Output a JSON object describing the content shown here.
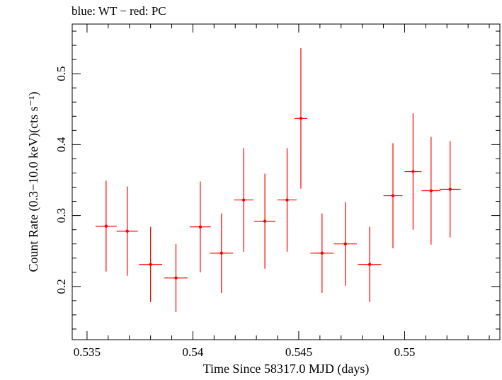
{
  "chart_data": {
    "type": "scatter",
    "title": "blue: WT − red: PC",
    "xlabel": "Time Since 58317.0 MJD (days)",
    "ylabel": "Count Rate (0.3−10.0 keV)(cts s⁻¹)",
    "xlim": [
      0.5343,
      0.5545
    ],
    "ylim": [
      0.125,
      0.57
    ],
    "xticks": [
      0.535,
      0.54,
      0.545,
      0.55
    ],
    "xtick_labels": [
      "0.535",
      "0.54",
      "0.545",
      "0.55"
    ],
    "yticks": [
      0.2,
      0.3,
      0.4,
      0.5
    ],
    "ytick_labels": [
      "0.2",
      "0.3",
      "0.4",
      "0.5"
    ],
    "grid": false,
    "series": [
      {
        "color": "#ff0000",
        "x": [
          0.5359,
          0.5369,
          0.538,
          0.5392,
          0.54035,
          0.54135,
          0.5424,
          0.5434,
          0.54445,
          0.5451,
          0.5461,
          0.5472,
          0.54835,
          0.54945,
          0.5504,
          0.55125,
          0.55215
        ],
        "x_err": [
          0.0005,
          0.0005,
          0.00055,
          0.00055,
          0.0005,
          0.00055,
          0.00045,
          0.0005,
          0.00045,
          0.0003,
          0.00055,
          0.00055,
          0.00055,
          0.00045,
          0.0004,
          0.00045,
          0.0005
        ],
        "y": [
          0.285,
          0.278,
          0.231,
          0.212,
          0.284,
          0.247,
          0.322,
          0.292,
          0.322,
          0.437,
          0.247,
          0.26,
          0.231,
          0.328,
          0.362,
          0.335,
          0.337
        ],
        "y_err": [
          0.064,
          0.063,
          0.053,
          0.048,
          0.064,
          0.056,
          0.073,
          0.067,
          0.073,
          0.099,
          0.056,
          0.059,
          0.053,
          0.074,
          0.082,
          0.076,
          0.068
        ]
      }
    ]
  }
}
